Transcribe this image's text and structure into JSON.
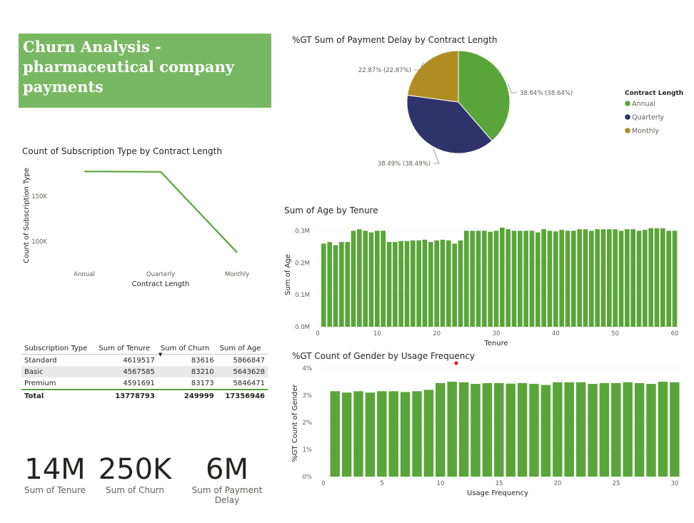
{
  "report": {
    "title_lines": [
      "Churn Analysis -",
      "pharmaceutical company",
      "payments"
    ]
  },
  "pie": {
    "title": "%GT Sum of Payment Delay by Contract Length",
    "legend_title": "Contract Length",
    "labels": [
      "38.64% (38.64%)",
      "38.49% (38.49%)",
      "22.87% (22.87%)"
    ]
  },
  "line_chart": {
    "title": "Count of Subscription Type by Contract Length",
    "ytick_labels": [
      "150K",
      "100K"
    ]
  },
  "age_chart": {
    "title": "Sum of Age by Tenure",
    "ytick_labels": [
      "0.3M",
      "0.2M",
      "0.1M",
      "0.0M"
    ]
  },
  "gender_chart": {
    "title": "%GT Count of Gender by Usage Frequency",
    "ytick_labels": [
      "4%",
      "3%",
      "2%",
      "1%",
      "0%"
    ]
  },
  "table": {
    "headers": [
      "Subscription Type",
      "Sum of Tenure",
      "Sum of Churn",
      "Sum of Age"
    ],
    "rows": [
      [
        "Standard",
        "4619517",
        "83616",
        "5866847"
      ],
      [
        "Basic",
        "4567585",
        "83210",
        "5643628"
      ],
      [
        "Premium",
        "4591691",
        "83173",
        "5846471"
      ]
    ],
    "total": [
      "Total",
      "13778793",
      "249999",
      "17356946"
    ]
  },
  "kpis": [
    {
      "value": "14M",
      "label": "Sum of Tenure"
    },
    {
      "value": "250K",
      "label": "Sum of Churn"
    },
    {
      "value": "6M",
      "label": "Sum of Payment Delay"
    }
  ],
  "colors": {
    "green": "#5aa53a",
    "navy": "#2e336b",
    "gold": "#b08d23",
    "title_bg": "#78b862"
  },
  "chart_data": [
    {
      "type": "pie",
      "title": "%GT Sum of Payment Delay by Contract Length",
      "legend_title": "Contract Length",
      "legend_position": "right",
      "categories": [
        "Annual",
        "Quarterly",
        "Monthly"
      ],
      "values": [
        38.64,
        38.49,
        22.87
      ],
      "colors": [
        "#5aa53a",
        "#2e336b",
        "#b08d23"
      ]
    },
    {
      "type": "line",
      "title": "Count of Subscription Type by Contract Length",
      "xlabel": "Contract Length",
      "ylabel": "Count of Subscription Type",
      "categories": [
        "Annual",
        "Quarterly",
        "Monthly"
      ],
      "values": [
        177200,
        176800,
        88000
      ],
      "ylim": [
        80000,
        190000
      ],
      "yticks": [
        100000,
        150000
      ],
      "color": "#5aa53a"
    },
    {
      "type": "bar",
      "title": "Sum of Age by Tenure",
      "xlabel": "Tenure",
      "ylabel": "Sum of Age",
      "x": [
        1,
        2,
        3,
        4,
        5,
        6,
        7,
        8,
        9,
        10,
        11,
        12,
        13,
        14,
        15,
        16,
        17,
        18,
        19,
        20,
        21,
        22,
        23,
        24,
        25,
        26,
        27,
        28,
        29,
        30,
        31,
        32,
        33,
        34,
        35,
        36,
        37,
        38,
        39,
        40,
        41,
        42,
        43,
        44,
        45,
        46,
        47,
        48,
        49,
        50,
        51,
        52,
        53,
        54,
        55,
        56,
        57,
        58,
        59,
        60
      ],
      "values": [
        0.26,
        0.265,
        0.255,
        0.265,
        0.265,
        0.3,
        0.305,
        0.3,
        0.295,
        0.3,
        0.3,
        0.265,
        0.265,
        0.268,
        0.268,
        0.27,
        0.27,
        0.272,
        0.265,
        0.27,
        0.272,
        0.27,
        0.26,
        0.27,
        0.3,
        0.3,
        0.3,
        0.3,
        0.297,
        0.3,
        0.31,
        0.305,
        0.3,
        0.3,
        0.3,
        0.3,
        0.295,
        0.305,
        0.3,
        0.298,
        0.303,
        0.3,
        0.3,
        0.305,
        0.305,
        0.3,
        0.305,
        0.305,
        0.305,
        0.305,
        0.3,
        0.305,
        0.305,
        0.3,
        0.303,
        0.308,
        0.308,
        0.308,
        0.3,
        0.3
      ],
      "ylim": [
        0,
        0.33
      ],
      "yticks": [
        0,
        0.1,
        0.2,
        0.3
      ],
      "xticks": [
        0,
        10,
        20,
        30,
        40,
        50,
        60
      ],
      "color": "#5aa53a"
    },
    {
      "type": "bar",
      "title": "%GT Count of Gender by Usage Frequency",
      "xlabel": "Usage Frequency",
      "ylabel": "%GT Count of Gender",
      "x": [
        1,
        2,
        3,
        4,
        5,
        6,
        7,
        8,
        9,
        10,
        11,
        12,
        13,
        14,
        15,
        16,
        17,
        18,
        19,
        20,
        21,
        22,
        23,
        24,
        25,
        26,
        27,
        28,
        29,
        30
      ],
      "values": [
        3.15,
        3.1,
        3.15,
        3.1,
        3.15,
        3.15,
        3.12,
        3.15,
        3.2,
        3.45,
        3.5,
        3.48,
        3.42,
        3.45,
        3.45,
        3.43,
        3.45,
        3.42,
        3.38,
        3.48,
        3.48,
        3.48,
        3.42,
        3.45,
        3.45,
        3.48,
        3.45,
        3.42,
        3.5,
        3.48
      ],
      "ylim": [
        0,
        4
      ],
      "yticks": [
        0,
        1,
        2,
        3,
        4
      ],
      "xticks": [
        0,
        5,
        10,
        15,
        20,
        25,
        30
      ],
      "color": "#5aa53a"
    }
  ]
}
